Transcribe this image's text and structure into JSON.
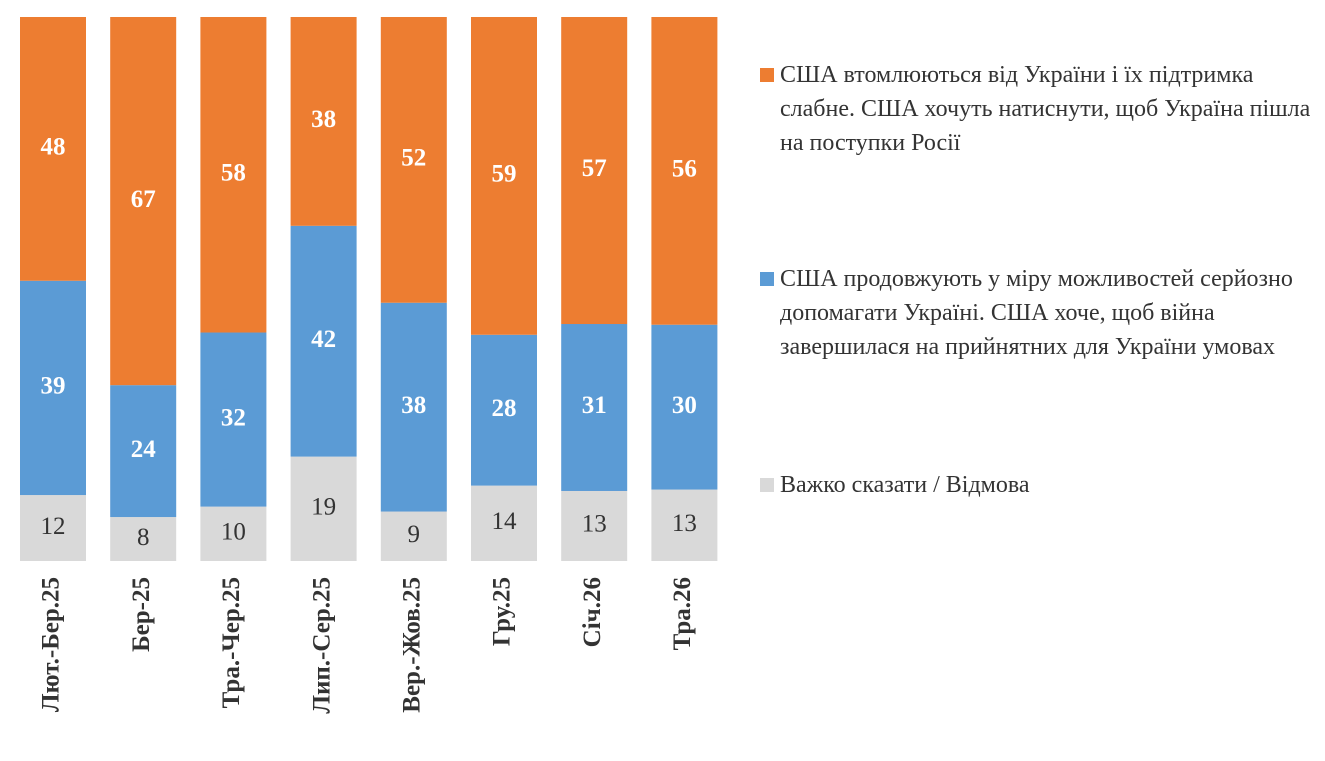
{
  "chart_data": {
    "type": "bar",
    "stacking": "percent",
    "legend": "right",
    "categories": [
      "Лют.-Бер.25",
      "Бер-25",
      "Тра.-Чер.25",
      "Лип.-Сер.25",
      "Вер.-Жов.25",
      "Гру.25",
      "Січ.26",
      "Тра.26"
    ],
    "series": [
      {
        "name": "США втомлюються від України і їх підтримка слабне. США хочуть натиснути, щоб Україна пішла на поступки Росії",
        "color": "#ED7D31",
        "values": [
          48,
          67,
          58,
          38,
          52,
          59,
          57,
          56
        ]
      },
      {
        "name": "США продовжують у міру можливостей серйозно допомагати Україні. США хоче, щоб війна завершилася на прийнятних для України умовах",
        "color": "#5B9BD5",
        "values": [
          39,
          24,
          32,
          42,
          38,
          28,
          31,
          30
        ]
      },
      {
        "name": "Важко сказати / Відмова",
        "color": "#D9D9D9",
        "values": [
          12,
          8,
          10,
          19,
          9,
          14,
          13,
          13
        ]
      }
    ]
  }
}
